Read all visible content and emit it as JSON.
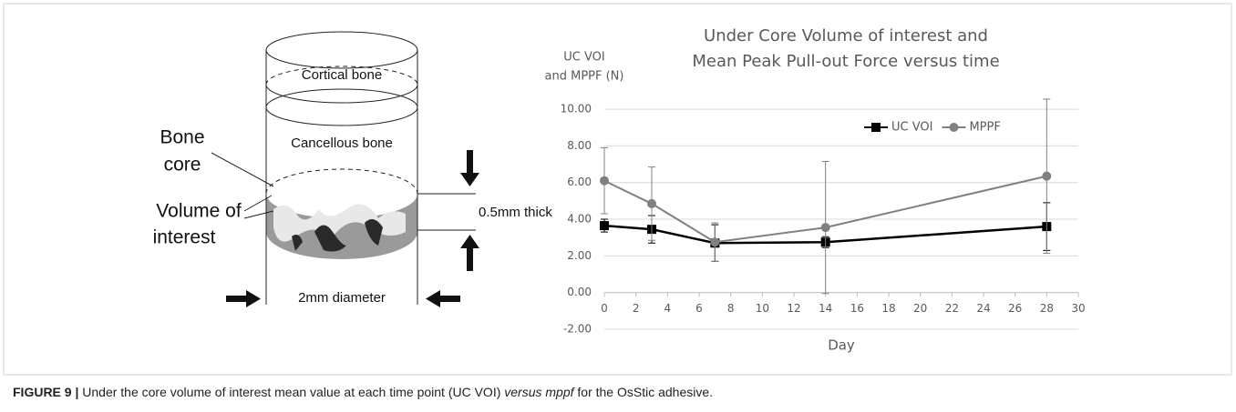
{
  "diagram": {
    "bone_core": [
      "Bone",
      "core"
    ],
    "cortical": "Cortical bone",
    "cancellous": "Cancellous bone",
    "voi": [
      "Volume of",
      "interest"
    ],
    "thickness": "0.5mm thick",
    "diameter": "2mm diameter"
  },
  "caption": [
    "FIGURE 9 |",
    " Under the core volume of interest mean value at each time point (UC VOI) ",
    "versus mppf",
    " for the OsStic adhesive."
  ],
  "chart_data": {
    "type": "line",
    "title": [
      "Under Core Volume of interest and",
      "Mean Peak Pull-out Force versus time"
    ],
    "y_label": [
      "UC VOI",
      "and MPPF (N)"
    ],
    "x_label": "Day",
    "x": [
      0,
      3,
      7,
      14,
      28
    ],
    "series": [
      {
        "name": "UC VOI",
        "color": "#000000",
        "marker": "square",
        "values": [
          3.65,
          3.45,
          2.7,
          2.75,
          3.6
        ],
        "errors": [
          0.35,
          0.75,
          1.0,
          0.3,
          1.3
        ]
      },
      {
        "name": "MPPF",
        "color": "#808080",
        "marker": "circle",
        "values": [
          6.1,
          4.85,
          2.75,
          3.55,
          6.35
        ],
        "errors": [
          1.8,
          2.0,
          1.05,
          3.6,
          4.2
        ]
      }
    ],
    "xlim": [
      0,
      30
    ],
    "xticks": [
      0,
      2,
      4,
      6,
      8,
      10,
      12,
      14,
      16,
      18,
      20,
      22,
      24,
      26,
      28,
      30
    ],
    "ylim": [
      -2,
      10.6
    ],
    "yticks": [
      {
        "value": -2,
        "label": "-2.00"
      },
      {
        "value": 0,
        "label": "0.00"
      },
      {
        "value": 2,
        "label": "2.00"
      },
      {
        "value": 4,
        "label": "4.00"
      },
      {
        "value": 6,
        "label": "6.00"
      },
      {
        "value": 8,
        "label": "8.00"
      },
      {
        "value": 10,
        "label": "10.00"
      }
    ],
    "grid": true,
    "legend": "upper right"
  }
}
